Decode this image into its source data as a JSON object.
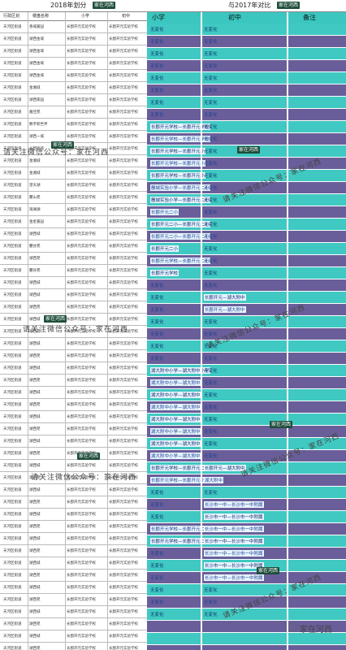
{
  "titles": {
    "left": "2018年划分",
    "right": "与2017年对比",
    "badge": "家在河西"
  },
  "left_headers": [
    "行政区划",
    "楼盘名称",
    "小学",
    "初中"
  ],
  "right_headers": [
    "小学",
    "初中",
    "备注"
  ],
  "watermark": "请关注微信公众号：家在河西",
  "logo_text": "家在河西",
  "left_rows": [
    [
      "天河区街道",
      "香城嘉园",
      "长郡开元实验学校",
      "长郡开元实验学校"
    ],
    [
      "天河区街道",
      "湖西金城",
      "长郡开元实验学校",
      "长郡开元实验学校"
    ],
    [
      "天河区街道",
      "湖西金域",
      "长郡开元实验学校",
      "长郡开元实验学校"
    ],
    [
      "天河区街道",
      "湖西金域",
      "长郡开元实验学校",
      "长郡开元实验学校"
    ],
    [
      "天河区街道",
      "湖西金城",
      "长郡开元实验学校",
      "长郡开元实验学校"
    ],
    [
      "天河区街道",
      "金湘城",
      "长郡开元实验学校",
      "长郡开元实验学校"
    ],
    [
      "天河区街道",
      "湖西家园",
      "长郡开元实验学校",
      "长郡开元实验学校"
    ],
    [
      "天河区街道",
      "雅佳苑",
      "长郡开元实验学校",
      "长郡开元实验学校"
    ],
    [
      "天河区街道",
      "数字新世界",
      "长郡开元实验学校",
      "长郡开元实验学校"
    ],
    [
      "天河区街道",
      "湖西一城",
      "长郡开元实验学校",
      "长郡开元实验学校"
    ],
    [
      "天河区街道",
      "长郡街道",
      "长郡开元实验学校",
      "长郡开元实验学校"
    ],
    [
      "天河区街道",
      "金湘城",
      "长郡开元实验学校",
      "长郡开元实验学校"
    ],
    [
      "天河区街道",
      "金湘城",
      "长郡开元实验学校",
      "长郡开元实验学校"
    ],
    [
      "天河区街道",
      "望天湖",
      "长郡开元实验学校",
      "长郡开元实验学校"
    ],
    [
      "天河区街道",
      "麓山苑",
      "长郡开元实验学校",
      "长郡开元实验学校"
    ],
    [
      "天河区街道",
      "观澜湖",
      "长郡开元实验学校",
      "长郡开元实验学校"
    ],
    [
      "天河区街道",
      "金星嘉园",
      "长郡开元实验学校",
      "长郡开元实验学校"
    ],
    [
      "天河区街道",
      "湖西城",
      "长郡开元实验学校",
      "长郡开元实验学校"
    ],
    [
      "天河区街道",
      "麓谷苑",
      "长郡开元实验学校",
      "长郡开元实验学校"
    ],
    [
      "天河区街道",
      "湖西苑",
      "长郡开元实验学校",
      "长郡开元实验学校"
    ],
    [
      "天河区街道",
      "麓谷苑",
      "长郡开元实验学校",
      "长郡开元实验学校"
    ],
    [
      "天河区街道",
      "湖西城",
      "长郡开元实验学校",
      "长郡开元实验学校"
    ],
    [
      "天河区街道",
      "湖西城",
      "长郡开元实验学校",
      "长郡开元实验学校"
    ],
    [
      "天河区街道",
      "湖西苑",
      "长郡开元实验学校",
      "长郡开元实验学校"
    ],
    [
      "天河区街道",
      "湖西城",
      "长郡开元实验学校",
      "长郡开元实验学校"
    ],
    [
      "天河区街道",
      "湖西苑",
      "长郡开元实验学校",
      "长郡开元实验学校"
    ],
    [
      "天河区街道",
      "湖西城",
      "长郡开元实验学校",
      "长郡开元实验学校"
    ],
    [
      "天河区街道",
      "湖西苑",
      "长郡开元实验学校",
      "长郡开元实验学校"
    ],
    [
      "天河区街道",
      "湖西城",
      "长郡开元实验学校",
      "长郡开元实验学校"
    ],
    [
      "天河区街道",
      "湖西苑",
      "长郡开元实验学校",
      "长郡开元实验学校"
    ],
    [
      "天河区街道",
      "湖西城",
      "长郡开元实验学校",
      "长郡开元实验学校"
    ],
    [
      "天河区街道",
      "湖西苑",
      "长郡开元实验学校",
      "长郡开元实验学校"
    ],
    [
      "天河区街道",
      "湖西城",
      "长郡开元实验学校",
      "长郡开元实验学校"
    ],
    [
      "天河区街道",
      "湖西苑",
      "长郡开元实验学校",
      "长郡开元实验学校"
    ],
    [
      "天河区街道",
      "湖西城",
      "长郡开元实验学校",
      "长郡开元实验学校"
    ],
    [
      "天河区街道",
      "湖西苑",
      "长郡开元实验学校",
      "长郡开元实验学校"
    ],
    [
      "天河区街道",
      "湖西城",
      "长郡开元实验学校",
      "长郡开元实验学校"
    ],
    [
      "天河区街道",
      "湖西苑",
      "长郡开元实验学校",
      "长郡开元实验学校"
    ],
    [
      "天河区街道",
      "湖西城",
      "长郡开元实验学校",
      "长郡开元实验学校"
    ],
    [
      "天河区街道",
      "湖西苑",
      "长郡开元实验学校",
      "长郡开元实验学校"
    ],
    [
      "天河区街道",
      "湖西城",
      "长郡开元实验学校",
      "长郡开元实验学校"
    ],
    [
      "天河区街道",
      "湖西苑",
      "长郡开元实验学校",
      "长郡开元实验学校"
    ],
    [
      "天河区街道",
      "湖西城",
      "长郡开元实验学校",
      "长郡开元实验学校"
    ],
    [
      "天河区街道",
      "湖西苑",
      "长郡开元实验学校",
      "长郡开元实验学校"
    ],
    [
      "天河区街道",
      "湖西城",
      "长郡开元实验学校",
      "长郡开元实验学校"
    ],
    [
      "天河区街道",
      "湖西苑",
      "长郡开元实验学校",
      "长郡开元实验学校"
    ],
    [
      "天河区街道",
      "湖西城",
      "长郡开元实验学校",
      "长郡开元实验学校"
    ],
    [
      "天河区街道",
      "湖西苑",
      "长郡开元实验学校",
      "长郡开元实验学校"
    ],
    [
      "天河区街道",
      "湖西城",
      "长郡开元实验学校",
      "长郡开元实验学校"
    ],
    [
      "天河区街道",
      "湖西苑",
      "长郡开元实验学校",
      "长郡开元实验学校"
    ],
    [
      "天河区街道",
      "湖西城",
      "长郡开元实验学校",
      "长郡开元实验学校"
    ],
    [
      "天河区街道",
      "湖西苑",
      "长郡开元实验学校",
      "长郡开元实验学校"
    ]
  ],
  "right_rows": [
    {
      "c": "teal",
      "p": "无变化",
      "m": "无变化"
    },
    {
      "c": "purple",
      "p": "无变化",
      "m": "无变化"
    },
    {
      "c": "teal",
      "p": "无变化",
      "m": "无变化"
    },
    {
      "c": "purple",
      "p": "无变化",
      "m": "无变化"
    },
    {
      "c": "teal",
      "p": "无变化",
      "m": "无变化"
    },
    {
      "c": "purple",
      "p": "无变化",
      "m": "无变化"
    },
    {
      "c": "teal",
      "p": "无变化",
      "m": "无变化"
    },
    {
      "c": "purple",
      "p": "无变化",
      "m": "无变化"
    },
    {
      "c": "teal",
      "p": "长郡开元学校—长郡开元学校",
      "m": "无变化"
    },
    {
      "c": "purple",
      "p": "长郡开元学校—长郡开元学校",
      "m": "无变化"
    },
    {
      "c": "teal",
      "p": "长郡开元学校—长郡开元小",
      "m": "无变化"
    },
    {
      "c": "purple",
      "p": "长郡开元学校—长郡开元小",
      "m": "无变化"
    },
    {
      "c": "teal",
      "p": "长郡开元学校—长郡开元小",
      "m": "无变化"
    },
    {
      "c": "purple",
      "p": "麓城实验小学—长郡开元二小",
      "m": "无变化"
    },
    {
      "c": "teal",
      "p": "麓城实验小学—长郡开元二小",
      "m": "无变化"
    },
    {
      "c": "purple",
      "p": "长郡开元二小",
      "m": "无变化"
    },
    {
      "c": "teal",
      "p": "长郡开元二小—长郡开元二小",
      "m": "无变化"
    },
    {
      "c": "purple",
      "p": "长郡开元二小—长郡开元二小",
      "m": "无变化"
    },
    {
      "c": "teal",
      "p": "长郡开元二小",
      "m": "无变化"
    },
    {
      "c": "purple",
      "p": "长郡开元学校—长郡开元二小",
      "m": "无变化"
    },
    {
      "c": "teal",
      "p": "长郡开元学校",
      "m": "无变化"
    },
    {
      "c": "purple",
      "p": "无变化",
      "m": "无变化"
    },
    {
      "c": "teal",
      "p": "无变化",
      "m": "长郡开元—湖大附中"
    },
    {
      "c": "purple",
      "p": "无变化",
      "m": "长郡开元—湖大附中"
    },
    {
      "c": "teal",
      "p": "无变化",
      "m": "无变化"
    },
    {
      "c": "purple",
      "p": "无变化",
      "m": "无变化"
    },
    {
      "c": "teal",
      "p": "无变化",
      "m": "无变化"
    },
    {
      "c": "purple",
      "p": "无变化",
      "m": "无变化"
    },
    {
      "c": "teal",
      "p": "湖大附中小学—湖大附中小学",
      "m": "无变化"
    },
    {
      "c": "purple",
      "p": "湖大附中小学—湖大附中",
      "m": "无变化"
    },
    {
      "c": "teal",
      "p": "湖大附中小学—湖大附中",
      "m": "无变化"
    },
    {
      "c": "purple",
      "p": "湖大附中小学—湖大附中",
      "m": "无变化"
    },
    {
      "c": "teal",
      "p": "湖大附中小学—湖大附中",
      "m": "无变化"
    },
    {
      "c": "purple",
      "p": "湖大附中小学—湖大附中",
      "m": "无变化"
    },
    {
      "c": "teal",
      "p": "湖大附中小学—湖大附中",
      "m": "无变化"
    },
    {
      "c": "purple",
      "p": "湖大附中小学—湖大附中",
      "m": "无变化"
    },
    {
      "c": "teal",
      "p": "长郡开元学校—长郡开元二小",
      "m": "长郡开元—湖大附中"
    },
    {
      "c": "purple",
      "p": "长郡开元学校—长郡开元小",
      "m": "湖大附中"
    },
    {
      "c": "teal",
      "p": "无变化",
      "m": "无变化"
    },
    {
      "c": "purple",
      "p": "无变化",
      "m": "长沙市一中—长沙市一中附属"
    },
    {
      "c": "teal",
      "p": "无变化",
      "m": "长沙市一中—长沙市一中附属"
    },
    {
      "c": "purple",
      "p": "长郡开元学校—长郡开元二小",
      "m": "长沙市一中—长沙市一中附属"
    },
    {
      "c": "teal",
      "p": "长郡开元学校—长郡开元二小",
      "m": "长沙市一中—长沙市一中附属"
    },
    {
      "c": "purple",
      "p": "无变化",
      "m": "长沙市一中—长沙市一中附属"
    },
    {
      "c": "teal",
      "p": "无变化",
      "m": "长沙市一中—长沙市一中附属"
    },
    {
      "c": "purple",
      "p": "无变化",
      "m": "长沙市一中—长沙市一中附属"
    },
    {
      "c": "teal",
      "p": "无变化",
      "m": "无变化"
    },
    {
      "c": "purple",
      "p": "无变化",
      "m": "无变化"
    },
    {
      "c": "teal",
      "p": "无变化",
      "m": "无变化"
    },
    {
      "c": "purple",
      "p": "",
      "m": ""
    },
    {
      "c": "teal",
      "p": "",
      "m": ""
    },
    {
      "c": "purple",
      "p": "",
      "m": ""
    }
  ]
}
